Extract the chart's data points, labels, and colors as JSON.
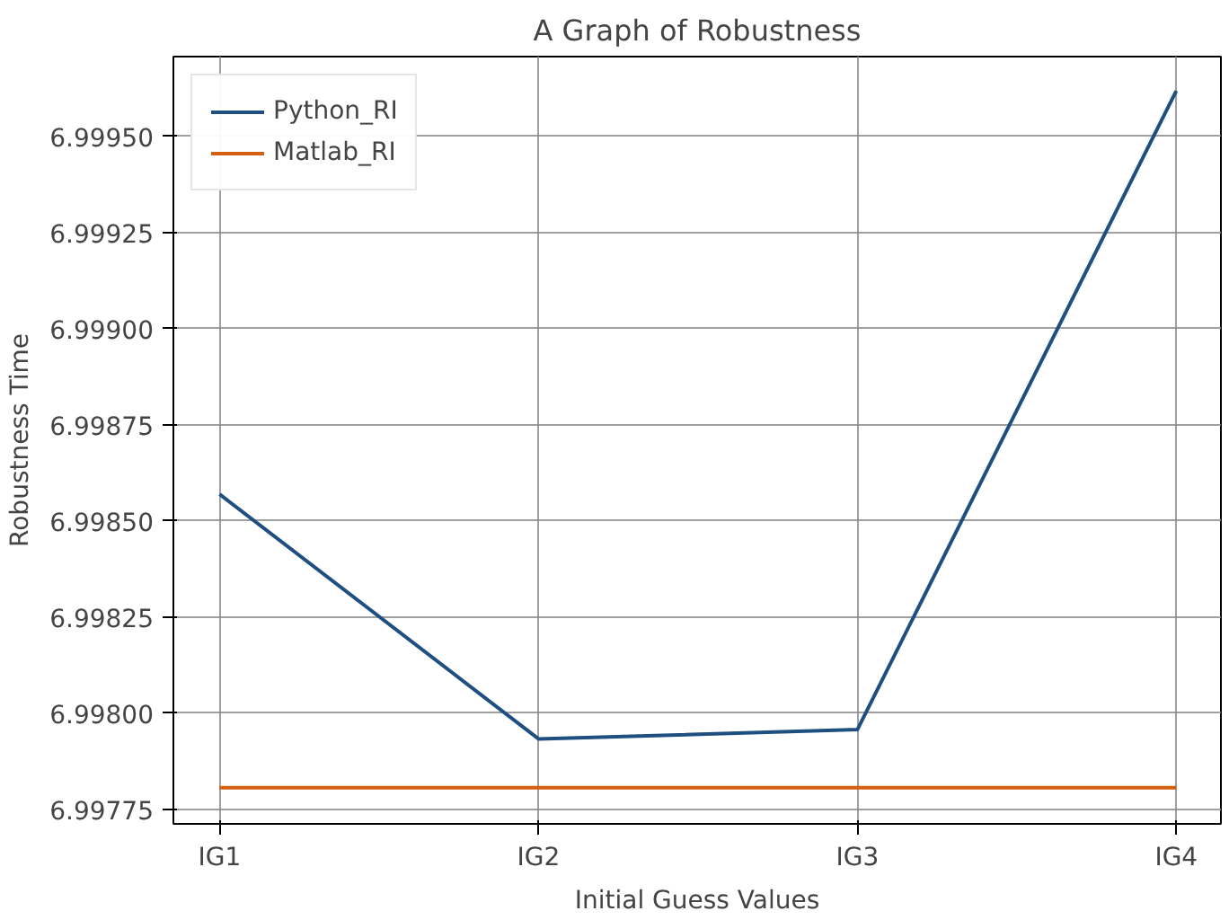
{
  "chart_data": {
    "type": "line",
    "title": "A Graph of Robustness",
    "xlabel": "Initial Guess Values",
    "ylabel": "Robustness Time",
    "categories": [
      "IG1",
      "IG2",
      "IG3",
      "IG4"
    ],
    "series": [
      {
        "name": "Python_RI",
        "color": "#1f4e80",
        "values": [
          6.998569,
          6.997933,
          6.997957,
          6.999618
        ]
      },
      {
        "name": "Matlab_RI",
        "color": "#d2600f",
        "values": [
          6.997806,
          6.997806,
          6.997806,
          6.997806
        ]
      }
    ],
    "ylim": [
      6.997712,
      6.999707
    ],
    "yticks": [
      {
        "value": 6.99775,
        "label": "6.99775"
      },
      {
        "value": 6.998,
        "label": "6.99800"
      },
      {
        "value": 6.99825,
        "label": "6.99825"
      },
      {
        "value": 6.9985,
        "label": "6.99850"
      },
      {
        "value": 6.99875,
        "label": "6.99875"
      },
      {
        "value": 6.999,
        "label": "6.99900"
      },
      {
        "value": 6.99925,
        "label": "6.99925"
      },
      {
        "value": 6.9995,
        "label": "6.99950"
      }
    ],
    "grid": true,
    "legend": "top left"
  }
}
